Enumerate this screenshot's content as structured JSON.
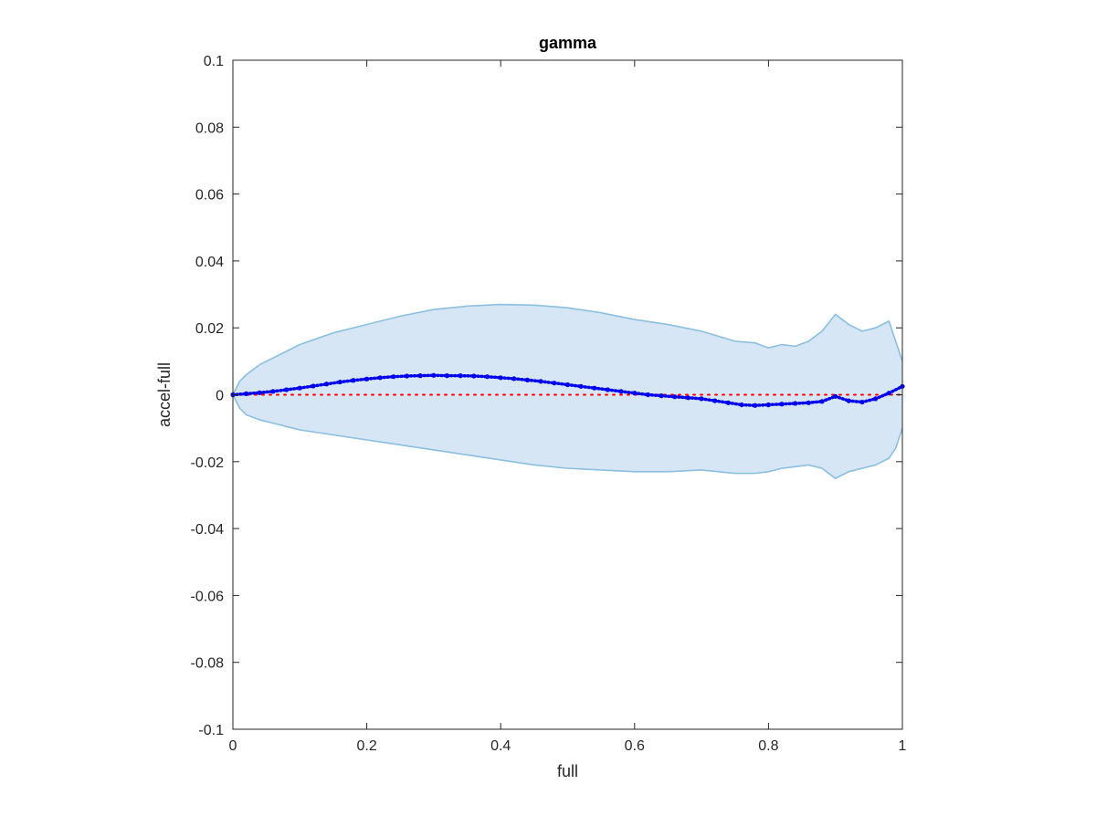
{
  "chart_data": {
    "type": "scatter",
    "title": "gamma",
    "xlabel": "full",
    "ylabel": "accel-full",
    "xlim": [
      0,
      1
    ],
    "ylim": [
      -0.1,
      0.1
    ],
    "xticks": [
      0,
      0.2,
      0.4,
      0.6,
      0.8,
      1
    ],
    "xtick_labels": [
      "0",
      "0.2",
      "0.4",
      "0.6",
      "0.8",
      "1"
    ],
    "yticks": [
      0.1,
      0.08,
      0.06,
      0.04,
      0.02,
      0,
      -0.02,
      -0.04,
      -0.06,
      -0.08,
      -0.1
    ],
    "ytick_labels": [
      "0.1",
      "0.08",
      "0.06",
      "0.04",
      "0.02",
      "0",
      "-0.02",
      "-0.04",
      "-0.06",
      "-0.08",
      "-0.1"
    ],
    "grid": false,
    "colors": {
      "band_fill": "#d6e6f4",
      "band_edge": "#8bbfdf",
      "points": "#0000ee",
      "zero_line": "#ff0000",
      "axes": "#262626"
    },
    "band": {
      "x": [
        0,
        0.01,
        0.02,
        0.04,
        0.06,
        0.08,
        0.1,
        0.15,
        0.2,
        0.25,
        0.3,
        0.35,
        0.4,
        0.45,
        0.5,
        0.55,
        0.6,
        0.65,
        0.7,
        0.75,
        0.78,
        0.8,
        0.82,
        0.84,
        0.86,
        0.88,
        0.9,
        0.92,
        0.94,
        0.96,
        0.98,
        0.99,
        1
      ],
      "upper": [
        0,
        0.004,
        0.006,
        0.009,
        0.011,
        0.013,
        0.015,
        0.0185,
        0.021,
        0.0235,
        0.0255,
        0.0265,
        0.027,
        0.0268,
        0.026,
        0.0245,
        0.0225,
        0.021,
        0.019,
        0.016,
        0.0155,
        0.014,
        0.015,
        0.0145,
        0.016,
        0.019,
        0.024,
        0.021,
        0.019,
        0.02,
        0.022,
        0.016,
        0.01
      ],
      "lower": [
        0,
        -0.004,
        -0.006,
        -0.0075,
        -0.0085,
        -0.0095,
        -0.0105,
        -0.012,
        -0.0135,
        -0.015,
        -0.0165,
        -0.018,
        -0.0195,
        -0.021,
        -0.022,
        -0.0225,
        -0.023,
        -0.023,
        -0.0225,
        -0.0235,
        -0.0235,
        -0.023,
        -0.022,
        -0.0215,
        -0.021,
        -0.022,
        -0.025,
        -0.023,
        -0.022,
        -0.021,
        -0.019,
        -0.016,
        -0.01
      ]
    },
    "series": [
      {
        "x": [
          0,
          0.02,
          0.04,
          0.06,
          0.08,
          0.1,
          0.12,
          0.14,
          0.16,
          0.18,
          0.2,
          0.22,
          0.24,
          0.26,
          0.28,
          0.3,
          0.32,
          0.34,
          0.36,
          0.38,
          0.4,
          0.42,
          0.44,
          0.46,
          0.48,
          0.5,
          0.52,
          0.54,
          0.56,
          0.58,
          0.6,
          0.62,
          0.64,
          0.66,
          0.68,
          0.7,
          0.72,
          0.74,
          0.76,
          0.78,
          0.8,
          0.82,
          0.84,
          0.86,
          0.88,
          0.9,
          0.92,
          0.94,
          0.96,
          0.98,
          1
        ],
        "y": [
          0,
          0.0003,
          0.0006,
          0.001,
          0.0015,
          0.002,
          0.0026,
          0.0032,
          0.0038,
          0.0043,
          0.0047,
          0.0051,
          0.0054,
          0.0056,
          0.0057,
          0.0058,
          0.0057,
          0.0057,
          0.0056,
          0.0054,
          0.0051,
          0.0048,
          0.0044,
          0.004,
          0.0035,
          0.003,
          0.0025,
          0.002,
          0.0015,
          0.001,
          0.0005,
          0,
          -0.0003,
          -0.0006,
          -0.0009,
          -0.0012,
          -0.0018,
          -0.0024,
          -0.003,
          -0.0032,
          -0.003,
          -0.0028,
          -0.0026,
          -0.0024,
          -0.002,
          -0.0005,
          -0.0018,
          -0.0022,
          -0.0012,
          0.0005,
          0.0025
        ]
      }
    ],
    "zero_line": {
      "y": 0,
      "style": "dotted"
    }
  }
}
